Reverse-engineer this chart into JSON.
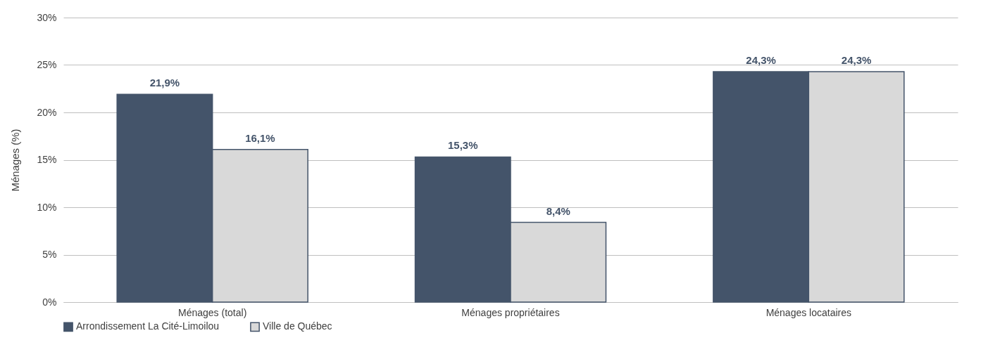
{
  "chart_data": {
    "type": "bar",
    "ylabel": "Ménages (%)",
    "categories": [
      "Ménages (total)",
      "Ménages propriétaires",
      "Ménages locataires"
    ],
    "series": [
      {
        "name": "Arrondissement La Cité-Limoilou",
        "color": "#44546a",
        "values": [
          21.9,
          15.3,
          24.3
        ],
        "value_labels": [
          "21,9%",
          "15,3%",
          "24,3%"
        ]
      },
      {
        "name": "Ville de Québec",
        "color": "#d9d9d9",
        "values": [
          16.1,
          8.4,
          24.3
        ],
        "value_labels": [
          "16,1%",
          "8,4%",
          "24,3%"
        ]
      }
    ],
    "ylim": [
      0,
      30
    ],
    "yticks": [
      {
        "value": 0,
        "label": "0%"
      },
      {
        "value": 5,
        "label": "5%"
      },
      {
        "value": 10,
        "label": "10%"
      },
      {
        "value": 15,
        "label": "15%"
      },
      {
        "value": 20,
        "label": "20%"
      },
      {
        "value": 25,
        "label": "25%"
      },
      {
        "value": 30,
        "label": "30%"
      }
    ],
    "grid": "y",
    "legend": "bottom"
  }
}
